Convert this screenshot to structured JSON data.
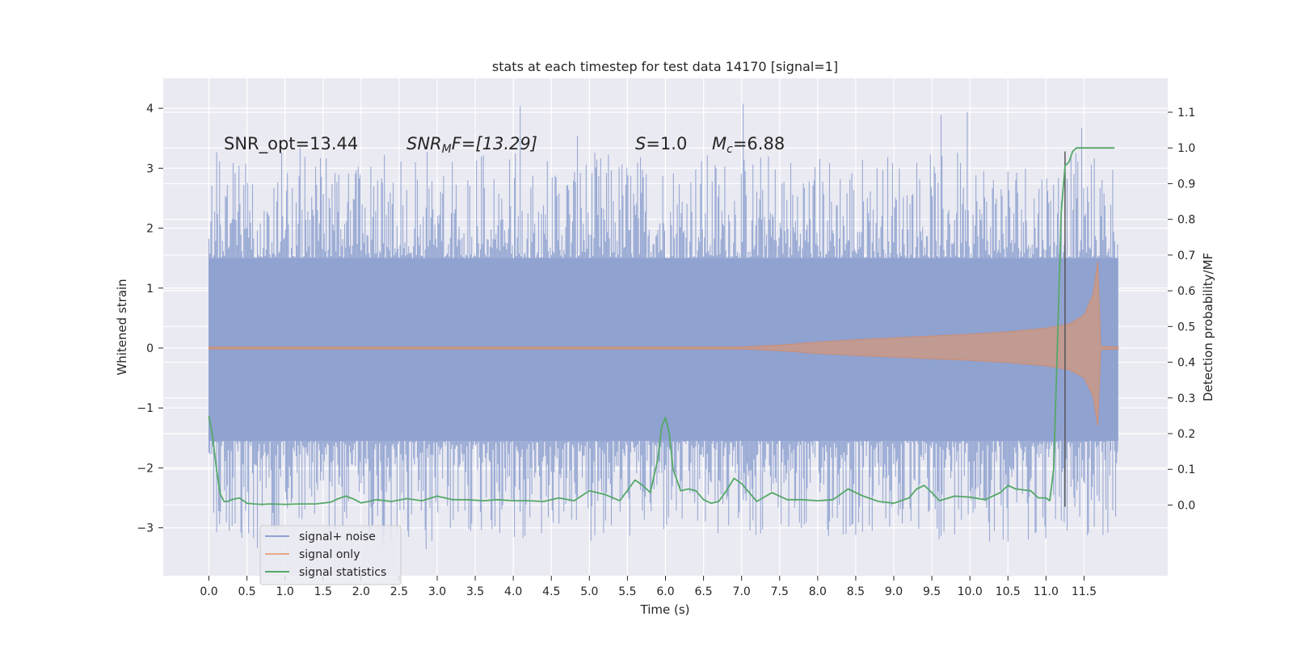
{
  "chart_data": {
    "type": "line",
    "title": "stats at each timestep for test data 14170 [signal=1]",
    "xlabel": "Time (s)",
    "ylabel_left": "Whitened strain",
    "ylabel_right": "Detection probability/MF",
    "xlim": [
      -0.6,
      12.6
    ],
    "ylim_left": [
      -3.8,
      4.5
    ],
    "ylim_right": [
      -0.198,
      1.195
    ],
    "x_ticks": [
      "0.0",
      "0.5",
      "1.0",
      "1.5",
      "2.0",
      "2.5",
      "3.0",
      "3.5",
      "4.0",
      "4.5",
      "5.0",
      "5.5",
      "6.0",
      "6.5",
      "7.0",
      "7.5",
      "8.0",
      "8.5",
      "9.0",
      "9.5",
      "10.0",
      "10.5",
      "11.0",
      "11.5"
    ],
    "y_ticks_left": [
      "−3",
      "−2",
      "−1",
      "0",
      "1",
      "2",
      "3",
      "4"
    ],
    "y_ticks_right": [
      "0.0",
      "0.1",
      "0.2",
      "0.3",
      "0.4",
      "0.5",
      "0.6",
      "0.7",
      "0.8",
      "0.9",
      "1.0",
      "1.1"
    ],
    "grid": true,
    "legend_position": "lower-left",
    "annotations": {
      "snr_opt": "SNR_opt=13.44",
      "snr_mf_sym": "SNR",
      "snr_mf_sub": "M",
      "snr_mf_rest": "F=[13.29]",
      "s_sym": "S",
      "s_rest": "=1.0",
      "mc_sym": "M",
      "mc_sub": "c",
      "mc_rest": "=6.88"
    },
    "marker_line_x": 11.25,
    "series": [
      {
        "name": "signal+ noise",
        "color": "#8fa2cf",
        "kind": "noise-band",
        "x_range": [
          0.0,
          11.95
        ],
        "band_low": -1.55,
        "band_high": 1.5,
        "peak_range": [
          -3.4,
          4.1
        ]
      },
      {
        "name": "signal only",
        "color": "#dd8452",
        "kind": "chirp-envelope",
        "envelope_x": [
          0.0,
          7.0,
          7.5,
          8.0,
          8.5,
          9.0,
          9.5,
          10.0,
          10.5,
          11.0,
          11.3,
          11.5,
          11.62,
          11.68,
          11.72,
          11.95
        ],
        "envelope_y": [
          0.02,
          0.02,
          0.05,
          0.1,
          0.14,
          0.17,
          0.2,
          0.23,
          0.27,
          0.33,
          0.4,
          0.55,
          0.9,
          1.45,
          0.03,
          0.02
        ]
      },
      {
        "name": "signal statistics",
        "color": "#55a868",
        "axis": "right",
        "x": [
          0.0,
          0.05,
          0.1,
          0.15,
          0.2,
          0.25,
          0.3,
          0.4,
          0.5,
          0.6,
          0.7,
          0.8,
          1.0,
          1.2,
          1.4,
          1.6,
          1.7,
          1.8,
          1.9,
          2.0,
          2.1,
          2.2,
          2.4,
          2.6,
          2.8,
          3.0,
          3.2,
          3.4,
          3.6,
          3.8,
          4.0,
          4.2,
          4.4,
          4.6,
          4.8,
          5.0,
          5.2,
          5.4,
          5.6,
          5.7,
          5.8,
          5.9,
          5.95,
          6.0,
          6.05,
          6.1,
          6.2,
          6.3,
          6.4,
          6.5,
          6.6,
          6.7,
          6.8,
          6.9,
          7.0,
          7.1,
          7.2,
          7.4,
          7.5,
          7.6,
          7.8,
          8.0,
          8.2,
          8.4,
          8.6,
          8.8,
          9.0,
          9.2,
          9.3,
          9.4,
          9.5,
          9.6,
          9.8,
          10.0,
          10.2,
          10.4,
          10.5,
          10.6,
          10.8,
          10.9,
          11.0,
          11.05,
          11.1,
          11.15,
          11.2,
          11.25,
          11.3,
          11.35,
          11.4,
          11.5,
          11.6,
          11.8,
          11.9
        ],
        "values": [
          0.25,
          0.19,
          0.1,
          0.03,
          0.01,
          0.01,
          0.015,
          0.02,
          0.005,
          0.003,
          0.002,
          0.003,
          0.002,
          0.003,
          0.003,
          0.008,
          0.018,
          0.025,
          0.017,
          0.006,
          0.01,
          0.015,
          0.01,
          0.018,
          0.012,
          0.025,
          0.015,
          0.015,
          0.012,
          0.015,
          0.012,
          0.012,
          0.01,
          0.02,
          0.012,
          0.04,
          0.03,
          0.012,
          0.07,
          0.055,
          0.035,
          0.13,
          0.22,
          0.245,
          0.2,
          0.1,
          0.04,
          0.045,
          0.04,
          0.015,
          0.005,
          0.01,
          0.04,
          0.075,
          0.06,
          0.035,
          0.01,
          0.035,
          0.025,
          0.015,
          0.015,
          0.012,
          0.015,
          0.045,
          0.025,
          0.01,
          0.005,
          0.02,
          0.045,
          0.055,
          0.035,
          0.012,
          0.025,
          0.022,
          0.015,
          0.035,
          0.055,
          0.045,
          0.04,
          0.02,
          0.02,
          0.012,
          0.1,
          0.45,
          0.82,
          0.95,
          0.96,
          0.99,
          1.0,
          1.0,
          1.0,
          1.0,
          1.0
        ]
      }
    ],
    "legend": [
      "signal+ noise",
      "signal only",
      "signal statistics"
    ]
  }
}
